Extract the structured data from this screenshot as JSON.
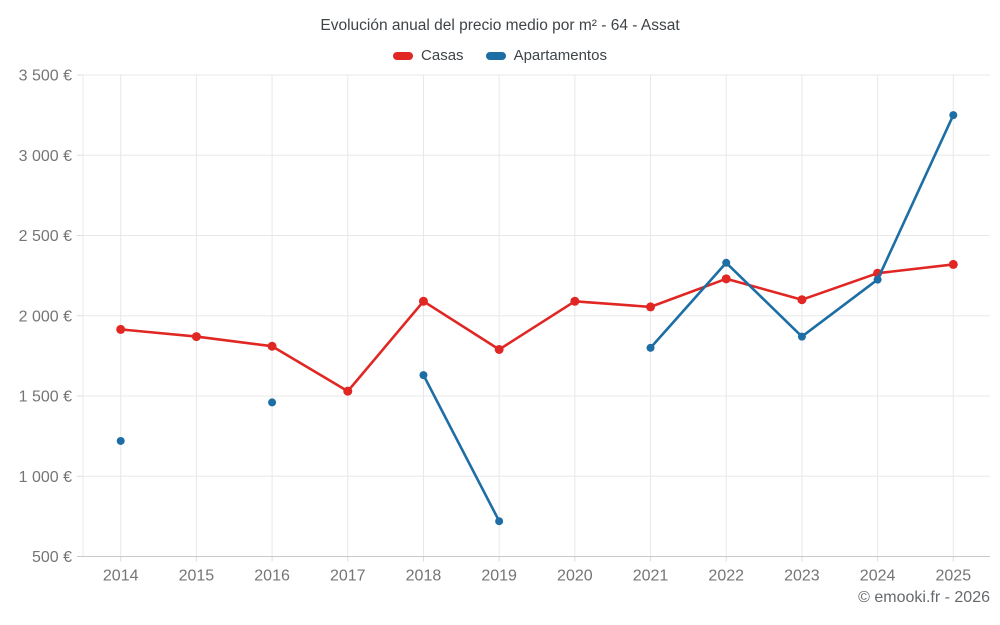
{
  "footer": "© emooki.fr - 2026",
  "colors": {
    "casas": "#e02723",
    "apartamentos": "#1c6ea4",
    "grid": "#e8e8e8",
    "tick": "#dcdcdc",
    "axis": "#c9c9c9",
    "tick_label": "#757575",
    "title_text": "#3f4448",
    "footer_text": "#65696e"
  },
  "chart_data": {
    "type": "line",
    "title": "Evolución anual del precio medio por m² - 64 - Assat",
    "categories": [
      "2014",
      "2015",
      "2016",
      "2017",
      "2018",
      "2019",
      "2020",
      "2021",
      "2022",
      "2023",
      "2024",
      "2025"
    ],
    "series": [
      {
        "name": "Casas",
        "color_key": "casas",
        "values": [
          1915,
          1870,
          1810,
          1530,
          2090,
          1790,
          2090,
          2055,
          2230,
          2100,
          2265,
          2320
        ]
      },
      {
        "name": "Apartamentos",
        "color_key": "apartamentos",
        "values": [
          1220,
          null,
          1460,
          null,
          1630,
          720,
          null,
          1800,
          2330,
          1870,
          2225,
          3250
        ]
      }
    ],
    "xlabel": "",
    "ylabel": "",
    "ylim": [
      500,
      3500
    ],
    "y_ticks": [
      {
        "value": 500,
        "label": "500 €"
      },
      {
        "value": 1000,
        "label": "1 000 €"
      },
      {
        "value": 1500,
        "label": "1 500 €"
      },
      {
        "value": 2000,
        "label": "2 000 €"
      },
      {
        "value": 2500,
        "label": "2 500 €"
      },
      {
        "value": 3000,
        "label": "3 000 €"
      },
      {
        "value": 3500,
        "label": "3 500 €"
      }
    ],
    "grid": true,
    "legend_position": "top"
  }
}
